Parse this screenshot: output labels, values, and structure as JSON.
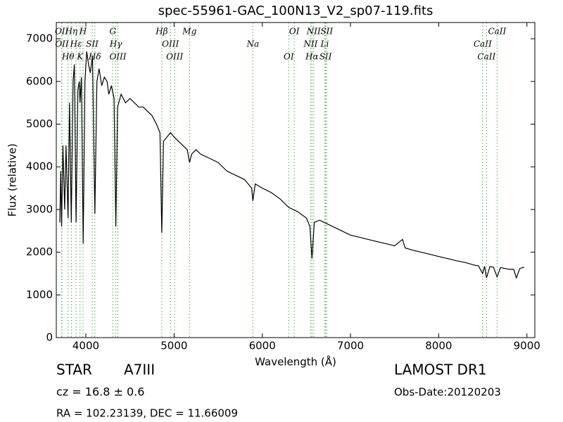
{
  "chart_data": {
    "type": "line",
    "title": "spec-55961-GAC_100N13_V2_sp07-119.fits",
    "x_label": "Wavelength (Å)",
    "y_label": "Flux (relative)",
    "xlim": [
      3665,
      9090
    ],
    "ylim": [
      0,
      7380
    ],
    "xticks": [
      4000,
      5000,
      6000,
      7000,
      8000,
      9000
    ],
    "yticks": [
      0,
      1000,
      2000,
      3000,
      4000,
      5000,
      6000,
      7000
    ],
    "x": [
      3705,
      3715,
      3725,
      3740,
      3760,
      3775,
      3798,
      3815,
      3835,
      3855,
      3870,
      3889,
      3910,
      3925,
      3934,
      3950,
      3970,
      3990,
      4010,
      4030,
      4050,
      4075,
      4102,
      4125,
      4150,
      4180,
      4210,
      4240,
      4260,
      4290,
      4320,
      4340,
      4360,
      4400,
      4450,
      4500,
      4550,
      4600,
      4650,
      4700,
      4750,
      4800,
      4840,
      4861,
      4880,
      4920,
      4960,
      5000,
      5050,
      5100,
      5150,
      5175,
      5200,
      5250,
      5300,
      5400,
      5500,
      5600,
      5700,
      5800,
      5880,
      5893,
      5920,
      6000,
      6100,
      6200,
      6300,
      6400,
      6500,
      6540,
      6563,
      6590,
      6650,
      6700,
      6800,
      6900,
      7000,
      7100,
      7200,
      7300,
      7400,
      7500,
      7590,
      7620,
      7700,
      7800,
      7900,
      8000,
      8100,
      8200,
      8300,
      8400,
      8450,
      8498,
      8520,
      8542,
      8580,
      8620,
      8662,
      8700,
      8750,
      8800,
      8850,
      8880,
      8920,
      8970
    ],
    "series": [
      {
        "name": "Flux",
        "color": "#000000",
        "values": [
          2700,
          3900,
          2600,
          4500,
          3000,
          4500,
          2800,
          5500,
          2700,
          6000,
          6400,
          2700,
          5800,
          6000,
          5500,
          6100,
          2200,
          6000,
          6700,
          6400,
          6200,
          6600,
          2900,
          6000,
          6300,
          5900,
          6100,
          6000,
          5700,
          5900,
          5600,
          2600,
          5400,
          5700,
          5500,
          5600,
          5500,
          5400,
          5400,
          5300,
          5200,
          5000,
          4800,
          2450,
          4600,
          4700,
          4800,
          4700,
          4600,
          4500,
          4400,
          4100,
          4300,
          4400,
          4300,
          4200,
          4100,
          3900,
          3800,
          3700,
          3500,
          3200,
          3600,
          3500,
          3400,
          3250,
          3050,
          2950,
          2800,
          2600,
          1850,
          2700,
          2750,
          2700,
          2600,
          2500,
          2400,
          2350,
          2300,
          2250,
          2200,
          2150,
          2300,
          2100,
          2050,
          2000,
          1950,
          1900,
          1850,
          1800,
          1760,
          1700,
          1680,
          1500,
          1670,
          1400,
          1660,
          1650,
          1420,
          1640,
          1620,
          1600,
          1600,
          1400,
          1620,
          1650
        ]
      }
    ],
    "marker_color": "#44aa44",
    "line_markers": [
      {
        "wavelength": 3726,
        "label": "OII"
      },
      {
        "wavelength": 3729,
        "label": "OII"
      },
      {
        "wavelength": 3798,
        "label": "Hθ"
      },
      {
        "wavelength": 3835,
        "label": "Hη"
      },
      {
        "wavelength": 3889,
        "label": "Hε"
      },
      {
        "wavelength": 3934,
        "label": "K"
      },
      {
        "wavelength": 3968,
        "label": "H"
      },
      {
        "wavelength": 4072,
        "label": "SII"
      },
      {
        "wavelength": 4102,
        "label": "Hδ"
      },
      {
        "wavelength": 4305,
        "label": "G"
      },
      {
        "wavelength": 4340,
        "label": "Hγ"
      },
      {
        "wavelength": 4363,
        "label": "OIII"
      },
      {
        "wavelength": 4861,
        "label": "Hβ"
      },
      {
        "wavelength": 4959,
        "label": "OIII"
      },
      {
        "wavelength": 5007,
        "label": "OIII"
      },
      {
        "wavelength": 5175,
        "label": "Mg"
      },
      {
        "wavelength": 5893,
        "label": "Na"
      },
      {
        "wavelength": 6300,
        "label": "OI"
      },
      {
        "wavelength": 6363,
        "label": "OI"
      },
      {
        "wavelength": 6548,
        "label": "NII"
      },
      {
        "wavelength": 6563,
        "label": "Hα"
      },
      {
        "wavelength": 6583,
        "label": "NII"
      },
      {
        "wavelength": 6708,
        "label": "Li"
      },
      {
        "wavelength": 6717,
        "label": "SII"
      },
      {
        "wavelength": 6731,
        "label": "SII"
      },
      {
        "wavelength": 8498,
        "label": "CaII"
      },
      {
        "wavelength": 8542,
        "label": "CaII"
      },
      {
        "wavelength": 8662,
        "label": "CaII"
      }
    ],
    "class": "STAR",
    "subclass": "A7III",
    "redshift": "cz = 16.8 ± 0.6",
    "coordinates": "RA = 102.23139, DEC = 11.66009",
    "survey": "LAMOST DR1",
    "obs_date": "Obs-Date:20120203"
  }
}
